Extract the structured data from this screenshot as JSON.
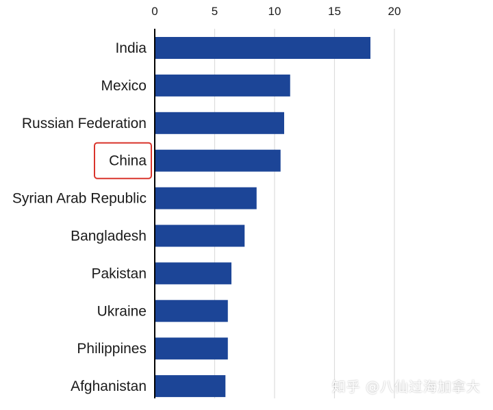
{
  "chart_data": {
    "type": "bar",
    "orientation": "horizontal",
    "categories": [
      "India",
      "Mexico",
      "Russian Federation",
      "China",
      "Syrian Arab Republic",
      "Bangladesh",
      "Pakistan",
      "Ukraine",
      "Philippines",
      "Afghanistan"
    ],
    "values": [
      18.0,
      11.3,
      10.8,
      10.5,
      8.5,
      7.5,
      6.4,
      6.1,
      6.1,
      5.9
    ],
    "xticks": [
      0,
      5,
      10,
      15,
      20
    ],
    "xlim": [
      0,
      20.5
    ],
    "x_axis_position": "top",
    "grid": true,
    "highlighted_category": "China"
  },
  "colors": {
    "bar": "#1c4597",
    "grid": "#dcdcdc",
    "axis": "#000000",
    "highlight_box": "#d9342b"
  },
  "watermark": "知乎 @八仙过海加拿大"
}
